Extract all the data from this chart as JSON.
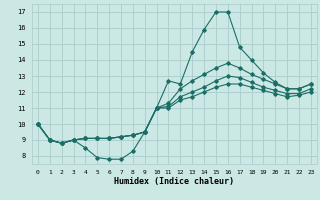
{
  "xlabel": "Humidex (Indice chaleur)",
  "bg_color": "#cce8e4",
  "grid_color": "#aacccc",
  "line_color": "#1a6e66",
  "xlim": [
    -0.5,
    23.5
  ],
  "ylim": [
    7.5,
    17.5
  ],
  "xticks": [
    0,
    1,
    2,
    3,
    4,
    5,
    6,
    7,
    8,
    9,
    10,
    11,
    12,
    13,
    14,
    15,
    16,
    17,
    18,
    19,
    20,
    21,
    22,
    23
  ],
  "yticks": [
    8,
    9,
    10,
    11,
    12,
    13,
    14,
    15,
    16,
    17
  ],
  "series": [
    [
      10.0,
      9.0,
      8.8,
      9.0,
      8.5,
      7.9,
      7.8,
      7.8,
      8.3,
      9.5,
      11.0,
      12.7,
      12.5,
      14.5,
      15.9,
      17.0,
      17.0,
      14.8,
      14.0,
      13.2,
      12.6,
      12.2,
      12.2,
      12.5
    ],
    [
      10.0,
      9.0,
      8.8,
      9.0,
      9.1,
      9.1,
      9.1,
      9.2,
      9.3,
      9.5,
      11.0,
      11.3,
      12.2,
      12.7,
      13.1,
      13.5,
      13.8,
      13.5,
      13.1,
      12.8,
      12.5,
      12.2,
      12.2,
      12.5
    ],
    [
      10.0,
      9.0,
      8.8,
      9.0,
      9.1,
      9.1,
      9.1,
      9.2,
      9.3,
      9.5,
      11.0,
      11.1,
      11.7,
      12.0,
      12.3,
      12.7,
      13.0,
      12.9,
      12.6,
      12.3,
      12.1,
      11.9,
      11.9,
      12.2
    ],
    [
      10.0,
      9.0,
      8.8,
      9.0,
      9.1,
      9.1,
      9.1,
      9.2,
      9.3,
      9.5,
      11.0,
      11.0,
      11.5,
      11.7,
      12.0,
      12.3,
      12.5,
      12.5,
      12.3,
      12.1,
      11.9,
      11.7,
      11.8,
      12.0
    ]
  ]
}
